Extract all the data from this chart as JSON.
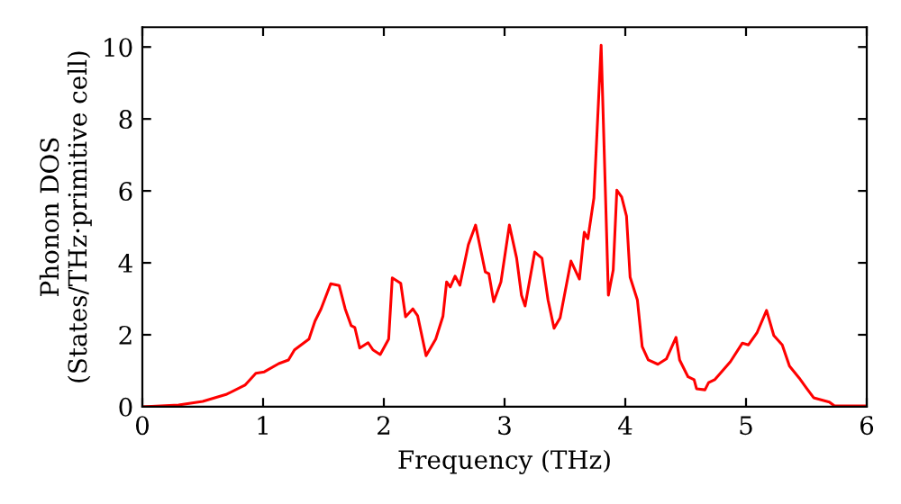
{
  "chart_data": {
    "type": "line",
    "xlabel": "Frequency (THz)",
    "ylabel": "Phonon DOS\n(States/THz·primitive cell)",
    "xlim": [
      0,
      6
    ],
    "ylim": [
      0,
      10.55
    ],
    "xticks": [
      0,
      1,
      2,
      3,
      4,
      5,
      6
    ],
    "yticks": [
      0,
      2,
      4,
      6,
      8,
      10
    ],
    "grid": false,
    "marker": "none",
    "line_style": "solid",
    "series": [
      {
        "color": "#ff0000",
        "x": [
          0,
          0.3,
          0.5,
          0.7,
          0.85,
          0.94,
          1.01,
          1.13,
          1.21,
          1.26,
          1.38,
          1.43,
          1.48,
          1.56,
          1.63,
          1.68,
          1.73,
          1.76,
          1.8,
          1.87,
          1.91,
          1.97,
          2.04,
          2.07,
          2.14,
          2.18,
          2.24,
          2.28,
          2.35,
          2.43,
          2.49,
          2.52,
          2.55,
          2.59,
          2.63,
          2.7,
          2.76,
          2.84,
          2.87,
          2.91,
          2.97,
          3.04,
          3.1,
          3.14,
          3.17,
          3.25,
          3.31,
          3.36,
          3.41,
          3.46,
          3.55,
          3.62,
          3.66,
          3.69,
          3.74,
          3.8,
          3.86,
          3.9,
          3.93,
          3.97,
          4.01,
          4.04,
          4.1,
          4.14,
          4.19,
          4.27,
          4.34,
          4.42,
          4.45,
          4.52,
          4.57,
          4.59,
          4.66,
          4.69,
          4.74,
          4.87,
          4.97,
          5.02,
          5.09,
          5.17,
          5.23,
          5.3,
          5.36,
          5.44,
          5.5,
          5.56,
          5.69,
          5.73,
          6.0
        ],
        "values": [
          0,
          0.05,
          0.15,
          0.35,
          0.6,
          0.93,
          0.97,
          1.2,
          1.3,
          1.58,
          1.88,
          2.38,
          2.72,
          3.42,
          3.37,
          2.72,
          2.25,
          2.2,
          1.63,
          1.78,
          1.58,
          1.45,
          1.88,
          3.58,
          3.43,
          2.5,
          2.72,
          2.53,
          1.42,
          1.88,
          2.52,
          3.47,
          3.33,
          3.63,
          3.38,
          4.5,
          5.05,
          3.75,
          3.7,
          2.92,
          3.47,
          5.05,
          4.13,
          3.1,
          2.8,
          4.3,
          4.13,
          2.97,
          2.18,
          2.47,
          4.05,
          3.55,
          4.85,
          4.67,
          5.8,
          10.05,
          3.1,
          3.8,
          6.02,
          5.83,
          5.3,
          3.6,
          2.97,
          1.67,
          1.3,
          1.18,
          1.33,
          1.93,
          1.3,
          0.83,
          0.75,
          0.5,
          0.47,
          0.67,
          0.75,
          1.25,
          1.77,
          1.72,
          2.05,
          2.68,
          1.98,
          1.72,
          1.13,
          0.8,
          0.52,
          0.25,
          0.13,
          0.03,
          0.02
        ]
      }
    ]
  }
}
